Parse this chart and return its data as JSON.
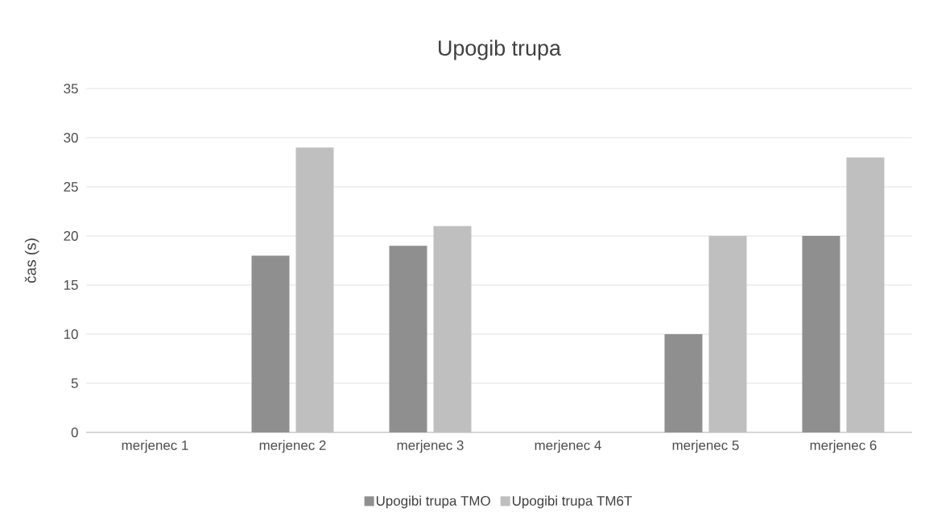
{
  "chart_data": {
    "type": "bar",
    "title": "Upogib trupa",
    "ylabel": "čas (s)",
    "categories": [
      "merjenec 1",
      "merjenec 2",
      "merjenec 3",
      "merjenec 4",
      "merjenec 5",
      "merjenec 6"
    ],
    "series": [
      {
        "name": "Upogibi trupa TMO",
        "color": "#8f8f8f",
        "values": [
          null,
          18,
          19,
          null,
          10,
          20
        ]
      },
      {
        "name": "Upogibi trupa TM6T",
        "color": "#bfbfbf",
        "values": [
          null,
          29,
          21,
          null,
          20,
          28
        ]
      }
    ],
    "ylim": [
      0,
      35
    ],
    "yticks": [
      0,
      5,
      10,
      15,
      20,
      25,
      30,
      35
    ],
    "grid": "y",
    "legend": "bottom"
  }
}
